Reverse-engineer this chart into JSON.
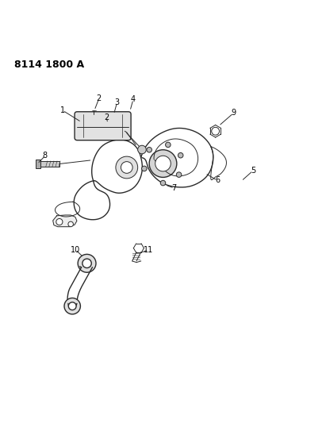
{
  "title": "8114 1800 A",
  "background_color": "#ffffff",
  "line_color": "#2a2a2a",
  "label_color": "#000000",
  "figure_width": 4.11,
  "figure_height": 5.33,
  "dpi": 100
}
